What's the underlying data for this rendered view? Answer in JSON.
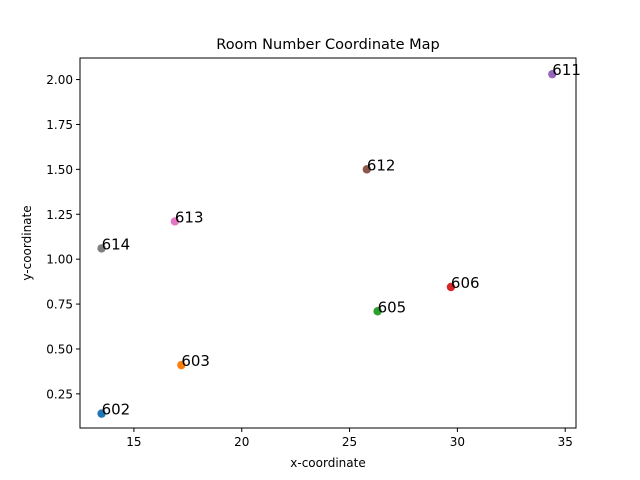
{
  "chart_data": {
    "type": "scatter",
    "title": "Room Number Coordinate Map",
    "xlabel": "x-coordinate",
    "ylabel": "y-coordinate",
    "xlim": [
      12.5,
      35.5
    ],
    "ylim": [
      0.06,
      2.12
    ],
    "xticks": [
      15,
      20,
      25,
      30,
      35
    ],
    "yticks": [
      0.25,
      0.5,
      0.75,
      1.0,
      1.25,
      1.5,
      1.75,
      2.0
    ],
    "xtick_labels": [
      "15",
      "20",
      "25",
      "30",
      "35"
    ],
    "ytick_labels": [
      "0.25",
      "0.50",
      "0.75",
      "1.00",
      "1.25",
      "1.50",
      "1.75",
      "2.00"
    ],
    "grid": false,
    "points": [
      {
        "label": "602",
        "x": 13.5,
        "y": 0.14,
        "color": "#1f77b4"
      },
      {
        "label": "603",
        "x": 17.2,
        "y": 0.41,
        "color": "#ff7f0e"
      },
      {
        "label": "605",
        "x": 26.3,
        "y": 0.71,
        "color": "#2ca02c"
      },
      {
        "label": "606",
        "x": 29.7,
        "y": 0.845,
        "color": "#d62728"
      },
      {
        "label": "611",
        "x": 34.4,
        "y": 2.03,
        "color": "#9467bd"
      },
      {
        "label": "612",
        "x": 25.8,
        "y": 1.5,
        "color": "#8c564b"
      },
      {
        "label": "613",
        "x": 16.9,
        "y": 1.21,
        "color": "#e377c2"
      },
      {
        "label": "614",
        "x": 13.5,
        "y": 1.06,
        "color": "#7f7f7f"
      }
    ]
  }
}
